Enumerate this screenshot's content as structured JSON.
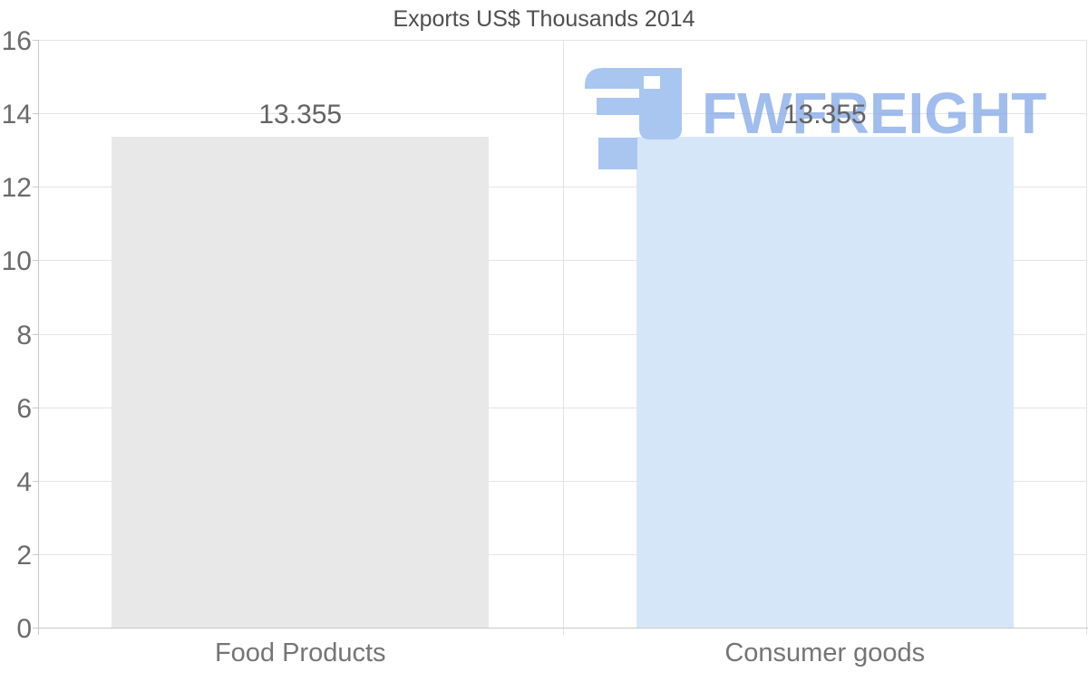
{
  "title": "Exports US$ Thousands 2014",
  "watermark": {
    "text": "FWFREIGHT",
    "icon": "fwfreight-logo",
    "color": "#a9c6f1"
  },
  "chart_data": {
    "type": "bar",
    "title": "Exports US$ Thousands 2014",
    "categories": [
      "Food Products",
      "Consumer goods"
    ],
    "values": [
      13.355,
      13.355
    ],
    "value_labels": [
      "13.355",
      "13.355"
    ],
    "bar_colors": [
      "#e8e8e8",
      "#d6e6f9"
    ],
    "xlabel": "",
    "ylabel": "",
    "ylim": [
      0,
      16
    ],
    "yticks": [
      0,
      2,
      4,
      6,
      8,
      10,
      12,
      14,
      16
    ],
    "grid": "horizontal-and-category-boundaries",
    "legend": "none",
    "background": "#ffffff",
    "text_colors": {
      "title": "#4f4f4f",
      "tick_labels": "#6b6b6b",
      "category_labels": "#757575",
      "value_labels": "#636363"
    },
    "line_colors": {
      "gridline": "#e4e4e4",
      "axis": "#c9c9c9"
    }
  }
}
